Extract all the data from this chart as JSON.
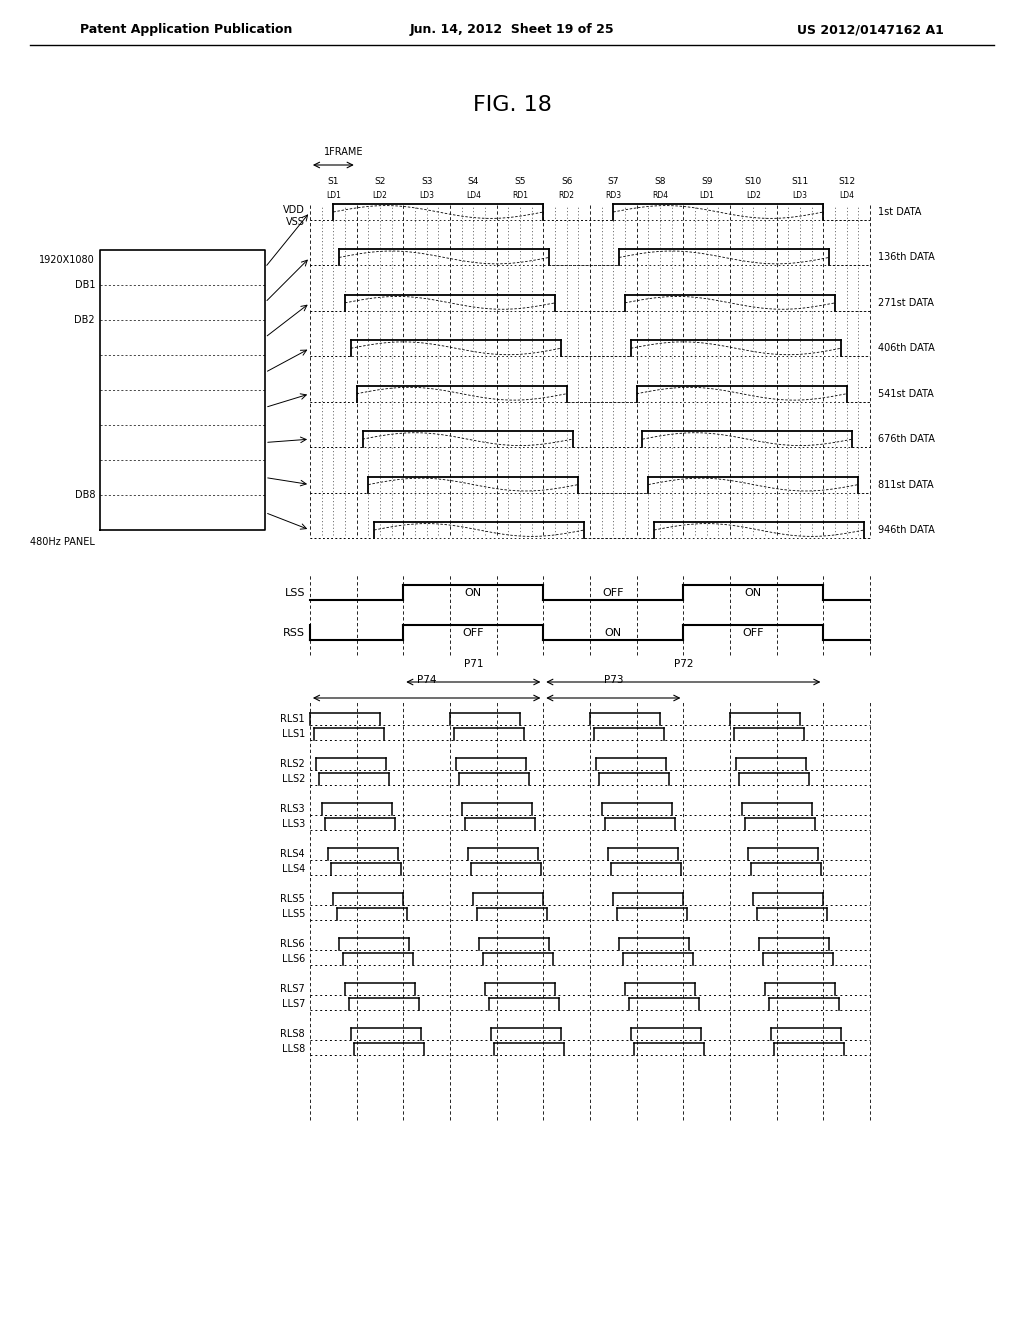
{
  "title": "FIG. 18",
  "header_left": "Patent Application Publication",
  "header_center": "Jun. 14, 2012  Sheet 19 of 25",
  "header_right": "US 2012/0147162 A1",
  "background_color": "#ffffff",
  "text_color": "#000000"
}
